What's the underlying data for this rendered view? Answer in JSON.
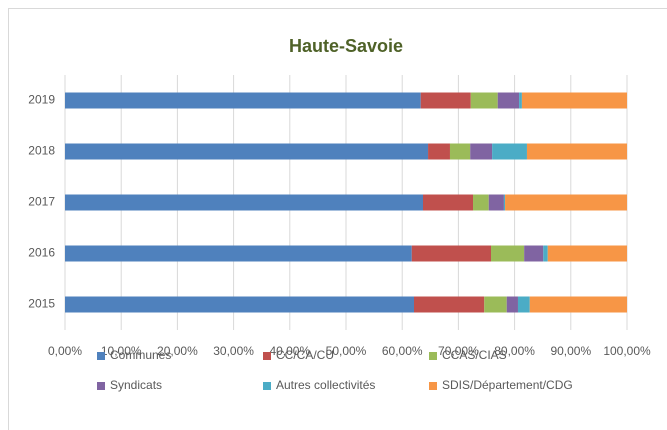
{
  "chart_data": {
    "type": "stacked_barh",
    "title": "Haute-Savoie",
    "categories": [
      "2015",
      "2016",
      "2017",
      "2018",
      "2019"
    ],
    "series": [
      {
        "name": "Communes",
        "color": "#4f81bd",
        "values": [
          62.1,
          61.7,
          63.7,
          64.6,
          63.3
        ]
      },
      {
        "name": "CC/CA/CU",
        "color": "#c0504d",
        "values": [
          12.5,
          14.1,
          8.9,
          3.9,
          8.9
        ]
      },
      {
        "name": "CCAS/CIAS",
        "color": "#9bbb59",
        "values": [
          4.0,
          5.9,
          2.8,
          3.6,
          4.8
        ]
      },
      {
        "name": "Syndicats",
        "color": "#8064a2",
        "values": [
          2.0,
          3.4,
          2.7,
          3.9,
          3.8
        ]
      },
      {
        "name": "Autres collectivités",
        "color": "#4bacc6",
        "values": [
          2.1,
          0.8,
          0.2,
          6.2,
          0.5
        ]
      },
      {
        "name": "SDIS/Département/CDG",
        "color": "#f79646",
        "values": [
          17.3,
          14.1,
          21.7,
          17.8,
          18.7
        ]
      }
    ],
    "xlim": [
      0,
      100
    ],
    "xticks": [
      {
        "value": 0,
        "label": "0,00%"
      },
      {
        "value": 10,
        "label": "10,00%"
      },
      {
        "value": 20,
        "label": "20,00%"
      },
      {
        "value": 30,
        "label": "30,00%"
      },
      {
        "value": 40,
        "label": "40,00%"
      },
      {
        "value": 50,
        "label": "50,00%"
      },
      {
        "value": 60,
        "label": "60,00%"
      },
      {
        "value": 70,
        "label": "70,00%"
      },
      {
        "value": 80,
        "label": "80,00%"
      },
      {
        "value": 90,
        "label": "90,00%"
      },
      {
        "value": 100,
        "label": "100,00%"
      }
    ],
    "grid": true,
    "legend": "bottom"
  }
}
